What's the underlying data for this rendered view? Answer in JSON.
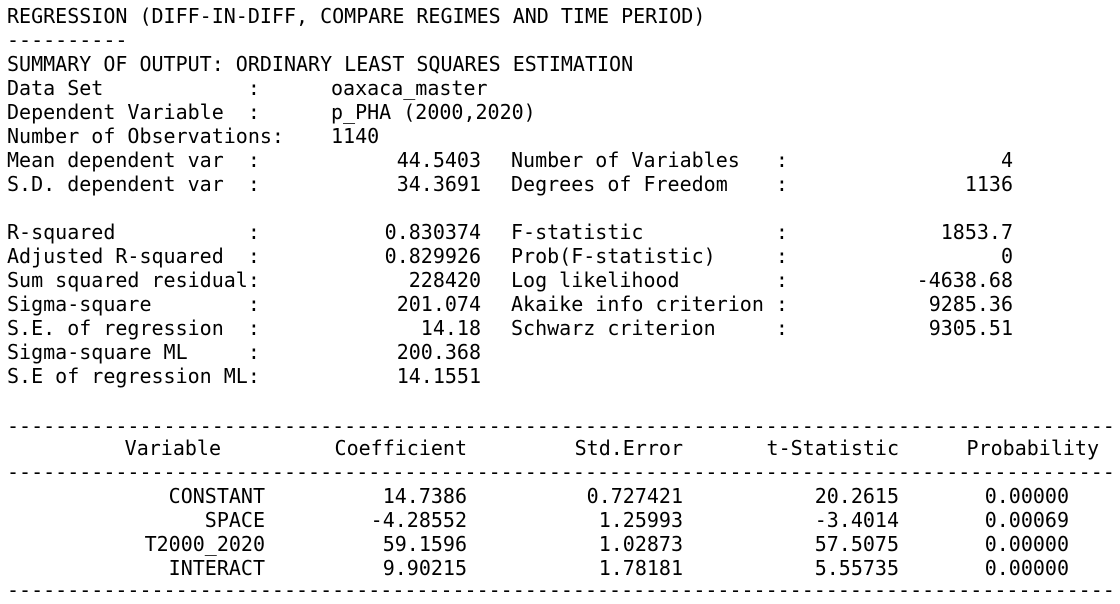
{
  "title": "REGRESSION (DIFF-IN-DIFF, COMPARE REGIMES AND TIME PERIOD)",
  "short_rule": "----------",
  "summary_heading": "SUMMARY OF OUTPUT: ORDINARY LEAST SQUARES ESTIMATION",
  "meta": {
    "data_set_label": "Data Set            :",
    "data_set_value": "oaxaca_master",
    "dep_var_label": "Dependent Variable  :",
    "dep_var_value": "p_PHA (2000,2020)",
    "n_obs_label": "Number of Observations:",
    "n_obs_value": "1140"
  },
  "stats_top": [
    {
      "label": "Mean dependent var  :",
      "value": "44.5403",
      "rlabel": "Number of Variables   :",
      "rvalue": "4"
    },
    {
      "label": "S.D. dependent var  :",
      "value": "34.3691",
      "rlabel": "Degrees of Freedom    :",
      "rvalue": "1136"
    }
  ],
  "stats_fit": [
    {
      "label": "R-squared           :",
      "value": "0.830374",
      "rlabel": "F-statistic           :",
      "rvalue": "1853.7"
    },
    {
      "label": "Adjusted R-squared  :",
      "value": "0.829926",
      "rlabel": "Prob(F-statistic)     :",
      "rvalue": "0"
    },
    {
      "label": "Sum squared residual:",
      "value": "228420",
      "rlabel": "Log likelihood        :",
      "rvalue": "-4638.68"
    },
    {
      "label": "Sigma-square        :",
      "value": "201.074",
      "rlabel": "Akaike info criterion :",
      "rvalue": "9285.36"
    },
    {
      "label": "S.E. of regression  :",
      "value": "14.18",
      "rlabel": "Schwarz criterion     :",
      "rvalue": "9305.51"
    },
    {
      "label": "Sigma-square ML     :",
      "value": "200.368",
      "rlabel": "",
      "rvalue": ""
    },
    {
      "label": "S.E of regression ML:",
      "value": "14.1551",
      "rlabel": "",
      "rvalue": ""
    }
  ],
  "table": {
    "headers": [
      "Variable",
      "Coefficient",
      "Std.Error",
      "t-Statistic",
      "Probability"
    ],
    "rows": [
      [
        "CONSTANT",
        "14.7386",
        "0.727421",
        "20.2615",
        "0.00000"
      ],
      [
        "SPACE",
        "-4.28552",
        "1.25993",
        "-3.4014",
        "0.00069"
      ],
      [
        "T2000_2020",
        "59.1596",
        "1.02873",
        "57.5075",
        "0.00000"
      ],
      [
        "INTERACT",
        "9.90215",
        "1.78181",
        "5.55735",
        "0.00000"
      ]
    ]
  },
  "long_rule": "----------------------------------------------------------------------------------------------------"
}
